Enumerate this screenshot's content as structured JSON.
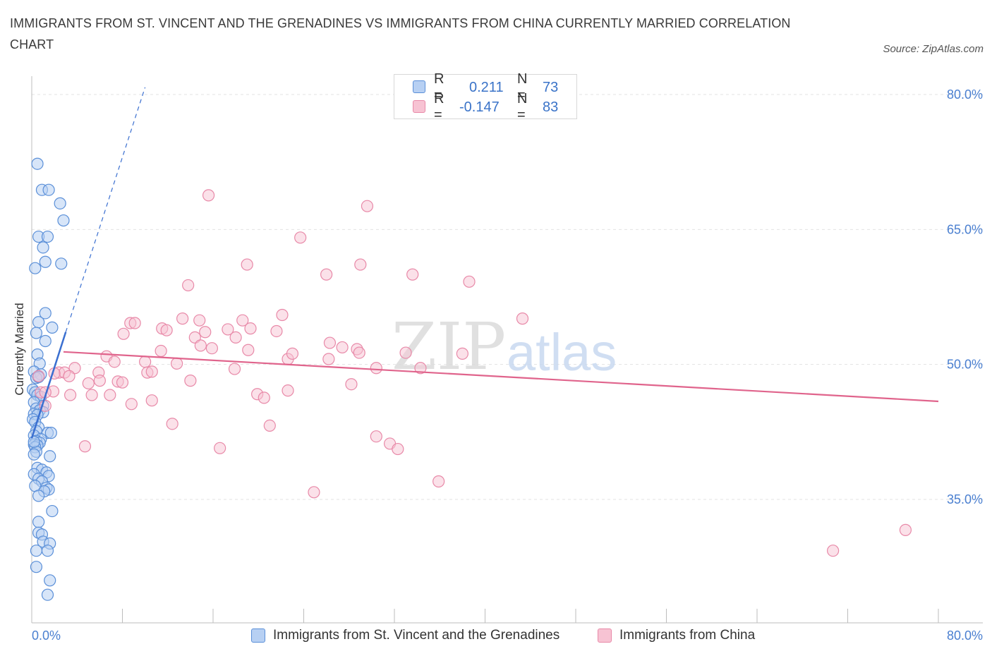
{
  "title": "IMMIGRANTS FROM ST. VINCENT AND THE GRENADINES VS IMMIGRANTS FROM CHINA CURRENTLY MARRIED CORRELATION CHART",
  "source": "Source: ZipAtlas.com",
  "watermark": {
    "zip": "ZIP",
    "atlas": "atlas"
  },
  "legend_top": {
    "rows": [
      {
        "r_label": "R =",
        "r_value": "0.211",
        "n_label": "N =",
        "n_value": "73"
      },
      {
        "r_label": "R =",
        "r_value": "-0.147",
        "n_label": "N =",
        "n_value": "83"
      }
    ]
  },
  "legend_bottom": [
    {
      "label": "Immigrants from St. Vincent and the Grenadines"
    },
    {
      "label": "Immigrants from China"
    }
  ],
  "colors": {
    "blue_fill": "#b7d0f3",
    "blue_stroke": "#5a8fd8",
    "blue_line": "#3a6fd0",
    "pink_fill": "#f7c3d3",
    "pink_stroke": "#e889a8",
    "pink_line": "#e0648c",
    "tick_text": "#4a7fd0",
    "grid": "#e3e3e3"
  },
  "chart_data": {
    "type": "scatter",
    "title": "IMMIGRANTS FROM ST. VINCENT AND THE GRENADINES VS IMMIGRANTS FROM CHINA CURRENTLY MARRIED CORRELATION CHART",
    "xlabel": "",
    "ylabel": "Currently Married",
    "x_tick_labels": [
      "0.0%",
      "80.0%"
    ],
    "y_tick_labels": [
      "35.0%",
      "50.0%",
      "65.0%",
      "80.0%"
    ],
    "y_ticks": [
      35,
      50,
      65,
      80
    ],
    "xlim": [
      0,
      80
    ],
    "ylim": [
      21,
      81
    ],
    "grid": true,
    "legend_position": "bottom",
    "series": [
      {
        "name": "Immigrants from St. Vincent and the Grenadines",
        "color": "#5a8fd8",
        "trend": {
          "x": [
            0.0,
            3.0
          ],
          "y": [
            41.8,
            53.6
          ]
        },
        "trend_extension": {
          "x": [
            3.0,
            10.0
          ],
          "y": [
            53.6,
            80.8
          ]
        },
        "points": [
          [
            0.5,
            72.3
          ],
          [
            0.9,
            69.4
          ],
          [
            1.5,
            69.4
          ],
          [
            2.5,
            67.9
          ],
          [
            2.8,
            66.0
          ],
          [
            0.6,
            64.2
          ],
          [
            1.4,
            64.2
          ],
          [
            1.0,
            63.0
          ],
          [
            1.2,
            61.4
          ],
          [
            2.6,
            61.2
          ],
          [
            0.3,
            60.7
          ],
          [
            1.2,
            55.7
          ],
          [
            0.6,
            54.7
          ],
          [
            1.8,
            54.1
          ],
          [
            0.4,
            53.5
          ],
          [
            1.2,
            52.6
          ],
          [
            0.5,
            51.1
          ],
          [
            0.7,
            50.1
          ],
          [
            0.2,
            49.2
          ],
          [
            0.8,
            48.9
          ],
          [
            0.4,
            48.5
          ],
          [
            0.6,
            48.6
          ],
          [
            0.1,
            47.2
          ],
          [
            0.3,
            46.9
          ],
          [
            0.5,
            46.6
          ],
          [
            0.8,
            46.4
          ],
          [
            0.2,
            45.8
          ],
          [
            1.0,
            45.4
          ],
          [
            0.4,
            45.1
          ],
          [
            0.7,
            44.9
          ],
          [
            1.0,
            44.7
          ],
          [
            0.2,
            44.5
          ],
          [
            0.5,
            44.4
          ],
          [
            0.1,
            43.9
          ],
          [
            0.3,
            43.6
          ],
          [
            0.6,
            43.0
          ],
          [
            0.4,
            42.6
          ],
          [
            1.4,
            42.4
          ],
          [
            1.7,
            42.4
          ],
          [
            0.2,
            42.1
          ],
          [
            0.8,
            41.7
          ],
          [
            0.4,
            41.5
          ],
          [
            0.7,
            41.3
          ],
          [
            0.2,
            41.1
          ],
          [
            0.5,
            41.0
          ],
          [
            0.3,
            40.8
          ],
          [
            0.4,
            40.3
          ],
          [
            0.2,
            40.0
          ],
          [
            1.6,
            39.8
          ],
          [
            0.5,
            38.5
          ],
          [
            0.9,
            38.3
          ],
          [
            1.3,
            38.0
          ],
          [
            0.2,
            37.8
          ],
          [
            1.5,
            37.6
          ],
          [
            0.6,
            37.3
          ],
          [
            0.9,
            37.0
          ],
          [
            0.3,
            36.5
          ],
          [
            1.3,
            36.3
          ],
          [
            1.5,
            36.1
          ],
          [
            1.1,
            35.9
          ],
          [
            0.6,
            35.4
          ],
          [
            1.8,
            33.7
          ],
          [
            0.6,
            32.5
          ],
          [
            0.6,
            31.3
          ],
          [
            0.9,
            31.1
          ],
          [
            1.0,
            30.3
          ],
          [
            1.6,
            30.1
          ],
          [
            0.4,
            29.3
          ],
          [
            1.4,
            29.3
          ],
          [
            0.4,
            27.5
          ],
          [
            1.6,
            26.0
          ],
          [
            1.4,
            24.4
          ],
          [
            0.2,
            41.4
          ]
        ]
      },
      {
        "name": "Immigrants from China",
        "color": "#e889a8",
        "trend": {
          "x": [
            2.8,
            80.0
          ],
          "y": [
            51.4,
            45.9
          ]
        },
        "points": [
          [
            15.6,
            68.8
          ],
          [
            29.6,
            67.6
          ],
          [
            23.7,
            64.1
          ],
          [
            19.0,
            61.1
          ],
          [
            29.0,
            61.1
          ],
          [
            26.0,
            60.0
          ],
          [
            33.6,
            60.0
          ],
          [
            38.6,
            59.2
          ],
          [
            13.8,
            58.8
          ],
          [
            22.1,
            55.5
          ],
          [
            13.3,
            55.1
          ],
          [
            14.8,
            54.9
          ],
          [
            18.6,
            54.9
          ],
          [
            8.7,
            54.6
          ],
          [
            9.1,
            54.6
          ],
          [
            11.5,
            54.0
          ],
          [
            11.9,
            53.8
          ],
          [
            15.3,
            53.6
          ],
          [
            17.3,
            53.9
          ],
          [
            19.3,
            54.0
          ],
          [
            21.6,
            53.7
          ],
          [
            8.1,
            53.4
          ],
          [
            14.4,
            53.0
          ],
          [
            18.0,
            53.0
          ],
          [
            43.3,
            55.1
          ],
          [
            26.3,
            52.4
          ],
          [
            14.9,
            52.1
          ],
          [
            27.4,
            51.9
          ],
          [
            28.7,
            51.7
          ],
          [
            19.1,
            51.6
          ],
          [
            11.4,
            51.5
          ],
          [
            15.9,
            51.8
          ],
          [
            22.6,
            50.6
          ],
          [
            23.0,
            51.2
          ],
          [
            28.9,
            51.3
          ],
          [
            26.2,
            50.6
          ],
          [
            33.0,
            51.3
          ],
          [
            38.0,
            51.2
          ],
          [
            6.6,
            50.9
          ],
          [
            7.3,
            50.3
          ],
          [
            10.0,
            50.3
          ],
          [
            12.8,
            50.1
          ],
          [
            3.8,
            49.6
          ],
          [
            17.9,
            49.5
          ],
          [
            30.4,
            49.6
          ],
          [
            34.3,
            49.6
          ],
          [
            2.4,
            49.1
          ],
          [
            2.9,
            49.1
          ],
          [
            10.2,
            49.1
          ],
          [
            10.6,
            49.2
          ],
          [
            5.9,
            49.1
          ],
          [
            3.3,
            48.7
          ],
          [
            14.0,
            48.2
          ],
          [
            6.0,
            48.2
          ],
          [
            7.6,
            48.1
          ],
          [
            5.0,
            47.9
          ],
          [
            8.0,
            48.0
          ],
          [
            28.2,
            47.8
          ],
          [
            1.9,
            47.0
          ],
          [
            0.8,
            46.9
          ],
          [
            22.6,
            47.1
          ],
          [
            1.2,
            46.9
          ],
          [
            3.4,
            46.6
          ],
          [
            5.3,
            46.6
          ],
          [
            6.9,
            46.6
          ],
          [
            19.9,
            46.7
          ],
          [
            20.5,
            46.3
          ],
          [
            10.6,
            46.0
          ],
          [
            8.8,
            45.6
          ],
          [
            1.2,
            45.4
          ],
          [
            12.4,
            43.4
          ],
          [
            21.0,
            43.2
          ],
          [
            30.4,
            42.0
          ],
          [
            31.6,
            41.2
          ],
          [
            32.3,
            40.6
          ],
          [
            4.7,
            40.9
          ],
          [
            16.6,
            40.7
          ],
          [
            35.9,
            37.0
          ],
          [
            24.9,
            35.8
          ],
          [
            77.1,
            31.6
          ],
          [
            70.7,
            29.3
          ],
          [
            0.6,
            48.7
          ],
          [
            2.0,
            49.0
          ]
        ]
      }
    ]
  }
}
